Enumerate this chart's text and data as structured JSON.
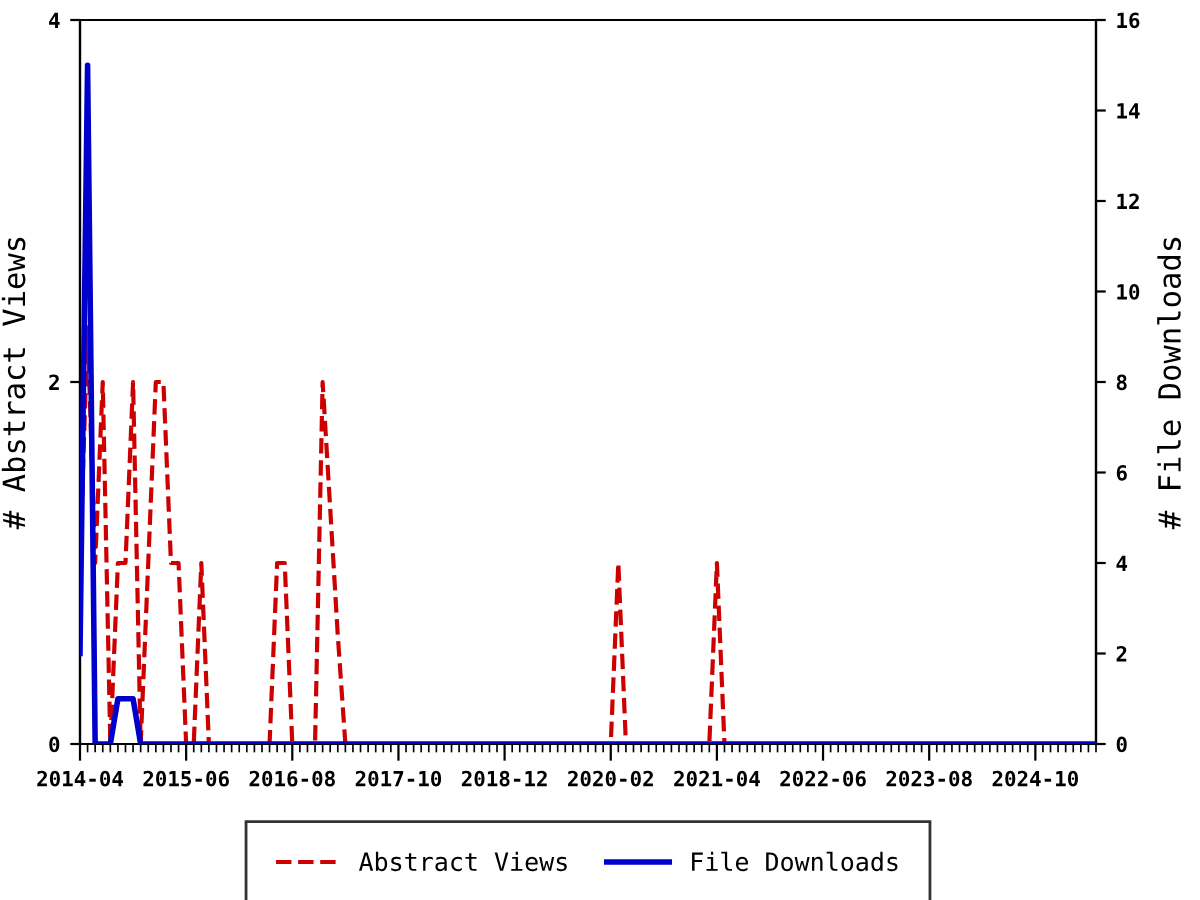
{
  "chart_data": {
    "type": "line",
    "ylabel": "# Abstract Views",
    "y2label": "# File Downloads",
    "xlim": [
      "2014-04",
      "2025-06"
    ],
    "xticks": [
      "2014-04",
      "2015-06",
      "2016-08",
      "2017-10",
      "2018-12",
      "2020-02",
      "2021-04",
      "2022-06",
      "2023-08",
      "2024-10"
    ],
    "ylim": [
      0,
      4
    ],
    "yticks": [
      0,
      2,
      4
    ],
    "y2lim": [
      0,
      16
    ],
    "y2ticks": [
      0,
      2,
      4,
      6,
      8,
      10,
      12,
      14,
      16
    ],
    "grid": false,
    "legend": "bottom",
    "marker": "none",
    "series": [
      {
        "name": "Abstract Views",
        "color": "#cc0000",
        "line_style": "dashed",
        "axis": "y",
        "x": [
          "2014-04",
          "2014-05",
          "2014-06",
          "2014-07",
          "2014-08",
          "2014-09",
          "2014-10",
          "2014-11",
          "2014-12",
          "2015-01",
          "2015-02",
          "2015-03",
          "2015-04",
          "2015-05",
          "2015-06",
          "2015-07",
          "2015-08",
          "2015-09",
          "2016-05",
          "2016-06",
          "2016-07",
          "2016-08",
          "2016-11",
          "2016-12",
          "2017-01",
          "2017-02",
          "2017-03",
          "2020-02",
          "2020-03",
          "2020-04",
          "2021-03",
          "2021-04",
          "2021-05",
          "2025-06"
        ],
        "values": [
          1,
          2.3,
          1,
          2,
          0,
          1,
          1,
          2,
          0,
          1,
          2,
          2,
          1,
          1,
          0,
          0,
          1,
          0,
          0,
          1,
          1,
          0,
          0,
          2,
          1.3,
          0.6,
          0,
          0,
          1,
          0,
          0,
          1,
          0,
          0
        ]
      },
      {
        "name": "File Downloads",
        "color": "#0000cc",
        "line_style": "solid",
        "axis": "y2",
        "x": [
          "2014-04",
          "2014-05",
          "2014-06",
          "2014-07",
          "2014-08",
          "2014-09",
          "2014-10",
          "2014-11",
          "2014-12",
          "2025-06"
        ],
        "values": [
          2,
          15,
          0,
          0,
          0,
          1,
          1,
          1,
          0,
          0
        ]
      }
    ]
  }
}
